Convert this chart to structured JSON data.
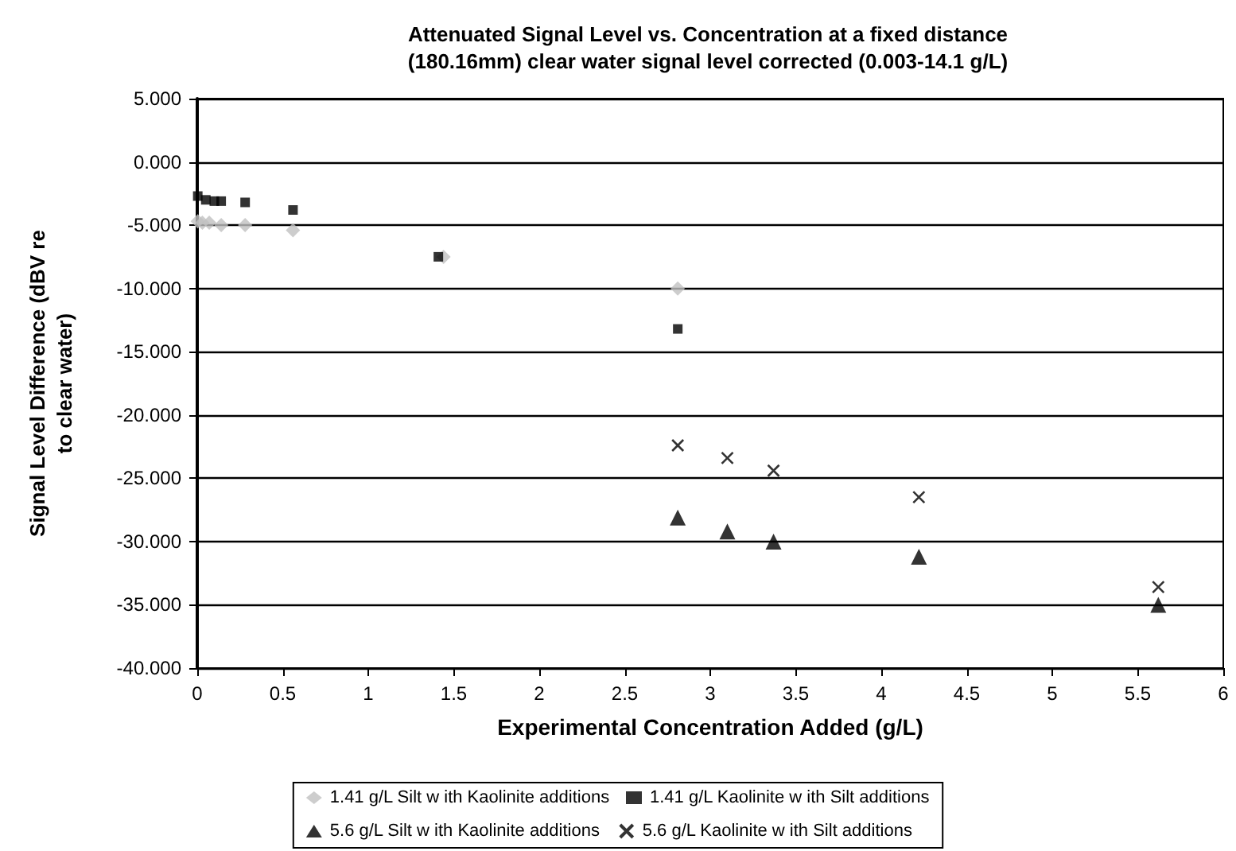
{
  "chart_data": {
    "type": "scatter",
    "title": "Attenuated Signal Level vs. Concentration at a fixed distance\n(180.16mm) clear water signal level corrected (0.003-14.1 g/L)",
    "xlabel": "Experimental Concentration Added (g/L)",
    "ylabel": "Signal Level Difference (dBV re\nto clear water)",
    "series": [
      {
        "name": "1.41 g/L Silt w ith Kaolinite additions",
        "color": "#c0c0c0",
        "marker": "diamond",
        "x": [
          0.003,
          0.03,
          0.07,
          0.14,
          0.28,
          0.56,
          1.44,
          2.81
        ],
        "values": [
          -4.7,
          -4.8,
          -4.8,
          -5.0,
          -5.0,
          -5.4,
          -7.5,
          -10.0
        ]
      },
      {
        "name": "1.41 g/L Kaolinite w ith Silt additions",
        "color": "#000000",
        "marker": "square",
        "x": [
          0.003,
          0.05,
          0.1,
          0.14,
          0.28,
          0.56,
          1.41,
          2.81
        ],
        "values": [
          -2.7,
          -3.0,
          -3.1,
          -3.1,
          -3.2,
          -3.8,
          -7.5,
          -13.2
        ]
      },
      {
        "name": "5.6 g/L Silt w ith Kaolinite additions",
        "color": "#000000",
        "marker": "triangle",
        "x": [
          2.81,
          3.1,
          3.37,
          4.22,
          5.62
        ],
        "values": [
          -28.1,
          -29.2,
          -30.0,
          -31.2,
          -35.0
        ]
      },
      {
        "name": "5.6 g/L Kaolinite w ith Silt additions",
        "color": "#000000",
        "marker": "cross",
        "x": [
          2.81,
          3.1,
          3.37,
          4.22,
          5.62
        ],
        "values": [
          -22.4,
          -23.4,
          -24.4,
          -26.5,
          -33.6
        ]
      }
    ],
    "xlim": [
      0,
      6
    ],
    "xticks": [
      0,
      0.5,
      1,
      1.5,
      2,
      2.5,
      3,
      3.5,
      4,
      4.5,
      5,
      5.5,
      6
    ],
    "ylim": [
      -40,
      5
    ],
    "yticks": [
      {
        "value": -40,
        "label": "-40.000"
      },
      {
        "value": -35,
        "label": "-35.000"
      },
      {
        "value": -30,
        "label": "-30.000"
      },
      {
        "value": -25,
        "label": "-25.000"
      },
      {
        "value": -20,
        "label": "-20.000"
      },
      {
        "value": -15,
        "label": "-15.000"
      },
      {
        "value": -10,
        "label": "-10.000"
      },
      {
        "value": -5,
        "label": "-5.000"
      },
      {
        "value": 0,
        "label": "0.000"
      },
      {
        "value": 5,
        "label": "5.000"
      }
    ],
    "grid": "y",
    "legend": "bottom"
  }
}
